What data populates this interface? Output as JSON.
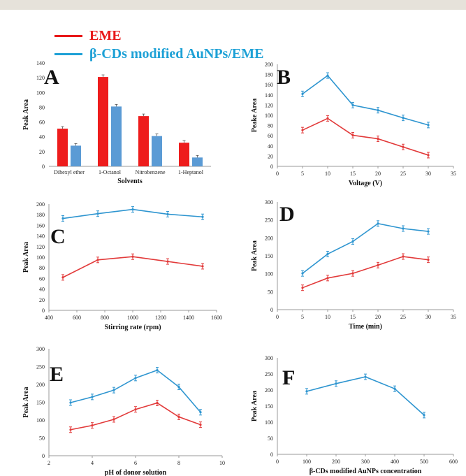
{
  "legend": [
    {
      "label": "EME",
      "color": "#e8191a"
    },
    {
      "label": "β-CDs modified AuNPs/EME",
      "color": "#1ea1d6"
    }
  ],
  "colors": {
    "eme_bar": "#ee1c1c",
    "aunp_bar": "#5b9bd5",
    "eme_line": "#e23a3a",
    "aunp_line": "#2e95d0",
    "axis": "#999999"
  },
  "chart_data": [
    {
      "id": "A",
      "type": "bar",
      "panel_label": "A",
      "categories": [
        "Dihexyl ether",
        "1-Octanol",
        "Nitrobenzene",
        "1-Heptanol"
      ],
      "series": [
        {
          "name": "EME",
          "values": [
            51,
            121,
            68,
            32
          ],
          "color": "#ee1c1c"
        },
        {
          "name": "β-CDs modified AuNPs/EME",
          "values": [
            28,
            81,
            41,
            12
          ],
          "color": "#5b9bd5"
        }
      ],
      "xlabel": "Solvents",
      "ylabel": "Peak Area",
      "ylim": [
        0,
        140
      ],
      "yticks": [
        0,
        20,
        40,
        60,
        80,
        100,
        120,
        140
      ]
    },
    {
      "id": "B",
      "type": "line",
      "panel_label": "B",
      "x": [
        5,
        10,
        15,
        20,
        25,
        30
      ],
      "series": [
        {
          "name": "β-CDs modified AuNPs/EME",
          "values": [
            142,
            178,
            120,
            110,
            95,
            81
          ],
          "color": "#2e95d0"
        },
        {
          "name": "EME",
          "values": [
            71,
            94,
            61,
            54,
            38,
            22
          ],
          "color": "#e23a3a"
        }
      ],
      "xlabel": "Voltage (V)",
      "ylabel": "Peake Area",
      "xlim": [
        0,
        35
      ],
      "xticks": [
        0,
        5,
        10,
        15,
        20,
        25,
        30,
        35
      ],
      "ylim": [
        0,
        200
      ],
      "yticks": [
        0,
        20,
        40,
        60,
        80,
        100,
        120,
        140,
        160,
        180,
        200
      ]
    },
    {
      "id": "C",
      "type": "line",
      "panel_label": "C",
      "x": [
        500,
        750,
        1000,
        1250,
        1500
      ],
      "series": [
        {
          "name": "β-CDs modified AuNPs/EME",
          "values": [
            173,
            182,
            190,
            181,
            176
          ],
          "color": "#2e95d0"
        },
        {
          "name": "EME",
          "values": [
            62,
            95,
            101,
            92,
            83
          ],
          "color": "#e23a3a"
        }
      ],
      "xlabel": "Stirring rate (rpm)",
      "ylabel": "Peak Area",
      "xlim": [
        400,
        1600
      ],
      "xticks": [
        400,
        600,
        800,
        1000,
        1200,
        1400,
        1600
      ],
      "ylim": [
        0,
        200
      ],
      "yticks": [
        0,
        20,
        40,
        60,
        80,
        100,
        120,
        140,
        160,
        180,
        200
      ]
    },
    {
      "id": "D",
      "type": "line",
      "panel_label": "D",
      "x": [
        5,
        10,
        15,
        20,
        25,
        30
      ],
      "series": [
        {
          "name": "β-CDs modified AuNPs/EME",
          "values": [
            101,
            155,
            190,
            240,
            226,
            218
          ],
          "color": "#2e95d0"
        },
        {
          "name": "EME",
          "values": [
            61,
            88,
            101,
            124,
            148,
            139
          ],
          "color": "#e23a3a"
        }
      ],
      "xlabel": "Time (min)",
      "ylabel": "Peak Area",
      "xlim": [
        0,
        35
      ],
      "xticks": [
        0,
        5,
        10,
        15,
        20,
        25,
        30,
        35
      ],
      "ylim": [
        0,
        300
      ],
      "yticks": [
        0,
        50,
        100,
        150,
        200,
        250,
        300
      ]
    },
    {
      "id": "E",
      "type": "line",
      "panel_label": "E",
      "x": [
        3,
        4,
        5,
        6,
        7,
        8,
        9
      ],
      "series": [
        {
          "name": "β-CDs modified AuNPs/EME",
          "values": [
            149,
            165,
            184,
            218,
            240,
            193,
            122
          ],
          "color": "#2e95d0"
        },
        {
          "name": "EME",
          "values": [
            73,
            85,
            102,
            130,
            148,
            109,
            87
          ],
          "color": "#e23a3a"
        }
      ],
      "xlabel": "pH of donor solution",
      "ylabel": "Peak Area",
      "xlim": [
        2,
        10
      ],
      "xticks": [
        2,
        4,
        6,
        8,
        10
      ],
      "ylim": [
        0,
        300
      ],
      "yticks": [
        0,
        50,
        100,
        150,
        200,
        250,
        300
      ]
    },
    {
      "id": "F",
      "type": "line",
      "panel_label": "F",
      "x": [
        100,
        200,
        300,
        400,
        500
      ],
      "series": [
        {
          "name": "β-CDs modified AuNPs/EME",
          "values": [
            196,
            220,
            241,
            204,
            122
          ],
          "color": "#2e95d0"
        }
      ],
      "xlabel": "β-CDs modified AuNPs concentration",
      "ylabel": "Peak Area",
      "xlim": [
        0,
        600
      ],
      "xticks": [
        0,
        100,
        200,
        300,
        400,
        500,
        600
      ],
      "ylim": [
        0,
        300
      ],
      "yticks": [
        0,
        50,
        100,
        150,
        200,
        250,
        300
      ]
    }
  ]
}
